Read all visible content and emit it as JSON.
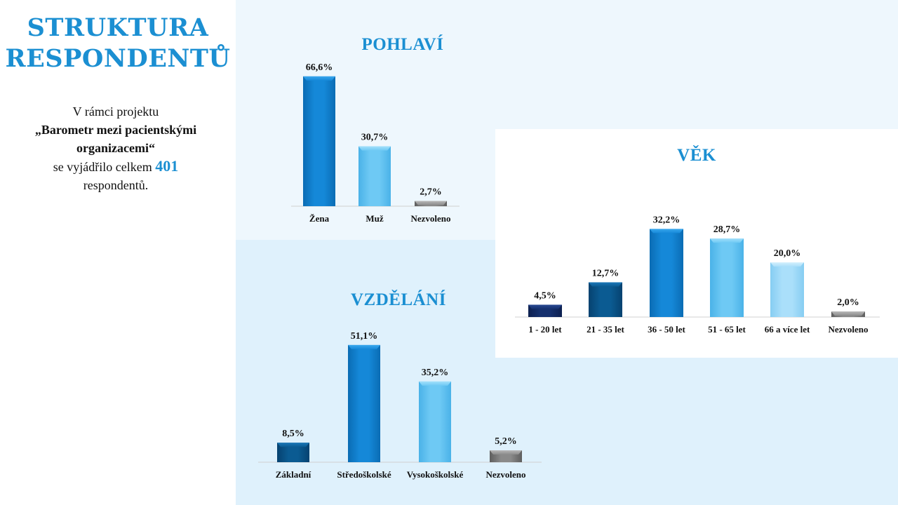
{
  "title": {
    "line1": "STRUKTURA",
    "line2": "RESPONDENTŮ"
  },
  "intro": {
    "line1": "V rámci projektu",
    "line2": "„Barometr mezi pacientskými",
    "line3": "organizacemi“",
    "line4_prefix": "se vyjádřilo celkem",
    "count": "401",
    "line5": "respondentů."
  },
  "colors": {
    "accent": "#1b8fd2",
    "bar_dark_navy": "#15306e",
    "bar_dark_blue": "#0b5b92",
    "bar_blue": "#1588d8",
    "bar_light": "#6ec9f4",
    "bar_lighter": "#aadffa",
    "bar_gray": "#8a8a8a"
  },
  "chart_data": [
    {
      "id": "gender",
      "type": "bar",
      "title": "POHLAVÍ",
      "categories": [
        "Žena",
        "Muž",
        "Nezvoleno"
      ],
      "values": [
        66.6,
        30.7,
        2.7
      ],
      "labels": [
        "66,6%",
        "30,7%",
        "2,7%"
      ],
      "colors": [
        "blue",
        "light",
        "gray"
      ],
      "xlabel": "",
      "ylabel": "",
      "grid": false
    },
    {
      "id": "age",
      "type": "bar",
      "title": "VĚK",
      "categories": [
        "1 - 20 let",
        "21 - 35 let",
        "36 - 50 let",
        "51 - 65 let",
        "66 a více let",
        "Nezvoleno"
      ],
      "values": [
        4.5,
        12.7,
        32.2,
        28.7,
        20.0,
        2.0
      ],
      "labels": [
        "4,5%",
        "12,7%",
        "32,2%",
        "28,7%",
        "20,0%",
        "2,0%"
      ],
      "colors": [
        "navy",
        "darkblue",
        "blue",
        "light",
        "lighter",
        "gray"
      ],
      "xlabel": "",
      "ylabel": "",
      "grid": false
    },
    {
      "id": "education",
      "type": "bar",
      "title": "VZDĚLÁNÍ",
      "categories": [
        "Základní",
        "Středoškolské",
        "Vysokoškolské",
        "Nezvoleno"
      ],
      "values": [
        8.5,
        51.1,
        35.2,
        5.2
      ],
      "labels": [
        "8,5%",
        "51,1%",
        "35,2%",
        "5,2%"
      ],
      "colors": [
        "darkblue",
        "blue",
        "light",
        "gray"
      ],
      "xlabel": "",
      "ylabel": "",
      "grid": false
    }
  ]
}
